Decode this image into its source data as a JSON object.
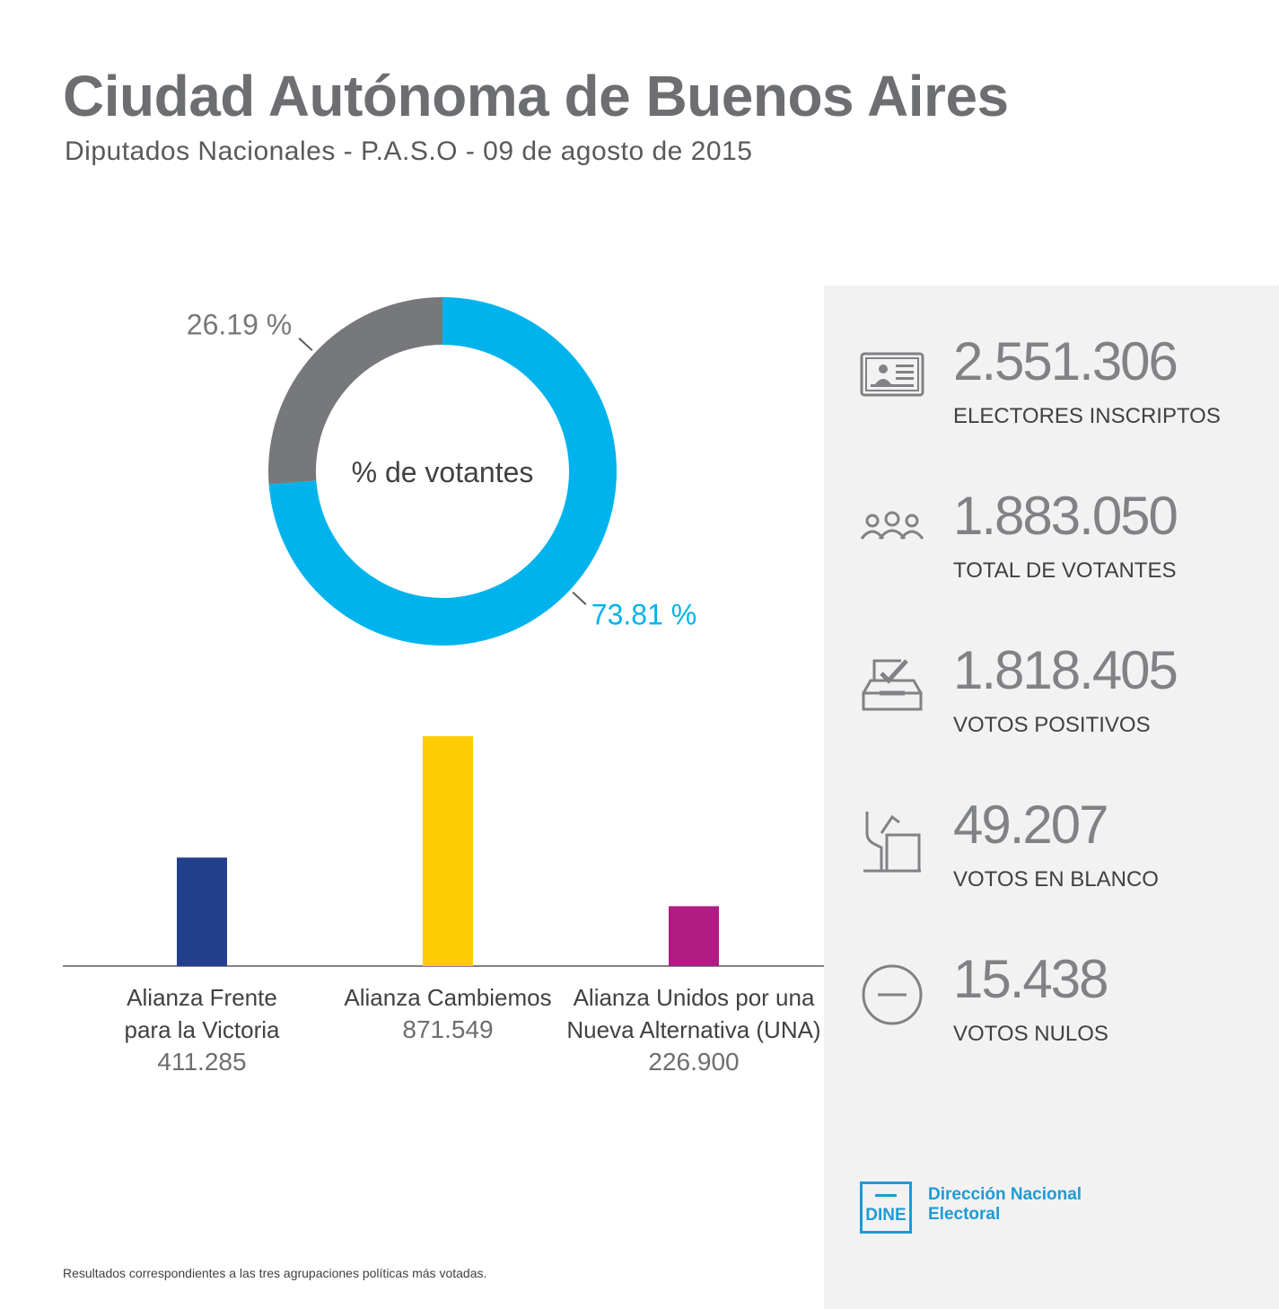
{
  "header": {
    "title": "Ciudad Autónoma de Buenos Aires",
    "subtitle": "Diputados Nacionales - P.A.S.O - 09 de agosto de 2015"
  },
  "chart_data": [
    {
      "type": "pie",
      "variant": "donut",
      "center_label": "% de votantes",
      "slices": [
        {
          "label": "73.81 %",
          "value": 73.81,
          "color": "#00b3ec"
        },
        {
          "label": "26.19 %",
          "value": 26.19,
          "color": "#77787b"
        }
      ]
    },
    {
      "type": "bar",
      "categories": [
        [
          "Alianza Frente",
          "para la Victoria"
        ],
        [
          "Alianza Cambiemos"
        ],
        [
          "Alianza Unidos por una",
          "Nueva Alternativa (UNA)"
        ]
      ],
      "values": [
        411285,
        871549,
        226900
      ],
      "value_labels": [
        "411.285",
        "871.549",
        "226.900"
      ],
      "colors": [
        "#253f8f",
        "#ffcb05",
        "#b01c83"
      ],
      "ylim": [
        0,
        871549
      ]
    }
  ],
  "stats": [
    {
      "icon": "id-card-icon",
      "value": "2.551.306",
      "label": "ELECTORES INSCRIPTOS"
    },
    {
      "icon": "people-icon",
      "value": "1.883.050",
      "label": "TOTAL DE VOTANTES"
    },
    {
      "icon": "ballot-box-icon",
      "value": "1.818.405",
      "label": "VOTOS POSITIVOS"
    },
    {
      "icon": "blank-vote-icon",
      "value": "49.207",
      "label": "VOTOS EN BLANCO"
    },
    {
      "icon": "null-vote-icon",
      "value": "15.438",
      "label": "VOTOS NULOS"
    }
  ],
  "logo": {
    "abbr": "DINE",
    "name_line1": "Dirección Nacional",
    "name_line2": "Electoral"
  },
  "footnote": "Resultados correspondientes a las tres agrupaciones políticas más votadas."
}
